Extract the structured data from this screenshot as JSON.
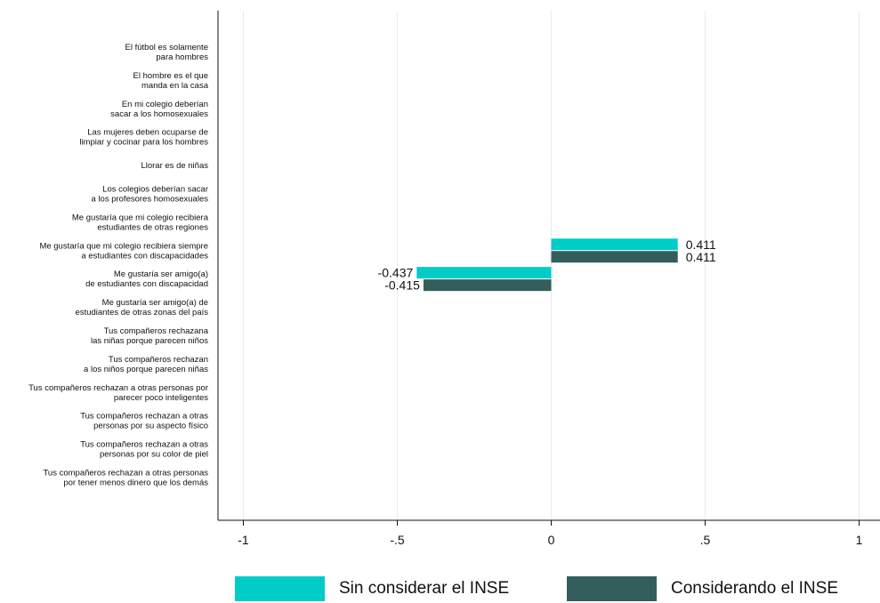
{
  "chart_data": {
    "type": "bar",
    "orientation": "horizontal",
    "categories": [
      [
        "El fútbol es solamente",
        "para hombres"
      ],
      [
        "El hombre es el que",
        "manda en la casa"
      ],
      [
        "En mi colegio deberían",
        "sacar a los homosexuales"
      ],
      [
        "Las mujeres deben ocuparse de",
        "limpiar y cocinar para los hombres"
      ],
      [
        "Llorar es de niñas"
      ],
      [
        "Los colegios deberían sacar",
        "a los profesores homosexuales"
      ],
      [
        "Me gustaría que mi colegio recibiera",
        "estudiantes de otras regiones"
      ],
      [
        "Me gustaría que mi colegio recibiera siempre",
        "a estudiantes con discapacidades"
      ],
      [
        "Me gustaría ser amigo(a)",
        "de estudiantes con discapacidad"
      ],
      [
        "Me gustaría ser amigo(a) de",
        "estudiantes de otras zonas del país"
      ],
      [
        "Tus compañeros rechazana",
        "las niñas porque parecen niños"
      ],
      [
        "Tus compañeros rechazan",
        "a los niños porque parecen niñas"
      ],
      [
        "Tus compañeros rechazan a otras personas por",
        "parecer poco inteligentes"
      ],
      [
        "Tus compañeros rechazan a otras",
        "personas por su aspecto físico"
      ],
      [
        "Tus compañeros rechazan a otras",
        "personas por su color de piel"
      ],
      [
        "Tus compañeros rechazan a otras personas",
        "por tener menos dinero que los demás"
      ]
    ],
    "series": [
      {
        "name": "Sin considerar el INSE",
        "color": "#00cdc8",
        "values": [
          null,
          null,
          null,
          null,
          null,
          null,
          null,
          0.411,
          -0.437,
          null,
          null,
          null,
          null,
          null,
          null,
          null
        ],
        "labels": [
          "",
          "",
          "",
          "",
          "",
          "",
          "",
          "0.411",
          "-0.437",
          "",
          "",
          "",
          "",
          "",
          "",
          ""
        ]
      },
      {
        "name": "Considerando el INSE",
        "color": "#335e5c",
        "values": [
          null,
          null,
          null,
          null,
          null,
          null,
          null,
          0.411,
          -0.415,
          null,
          null,
          null,
          null,
          null,
          null,
          null
        ],
        "labels": [
          "",
          "",
          "",
          "",
          "",
          "",
          "",
          "0.411",
          "-0.415",
          "",
          "",
          "",
          "",
          "",
          "",
          ""
        ]
      }
    ],
    "x_ticks": [
      -1,
      -0.5,
      0,
      0.5,
      1
    ],
    "x_tick_labels": [
      "-1",
      "-.5",
      "0",
      ".5",
      "1"
    ],
    "xlim": [
      -1,
      1
    ],
    "grid": "vertical",
    "grid_color": "#e3f0ef",
    "legend_position": "bottom"
  }
}
